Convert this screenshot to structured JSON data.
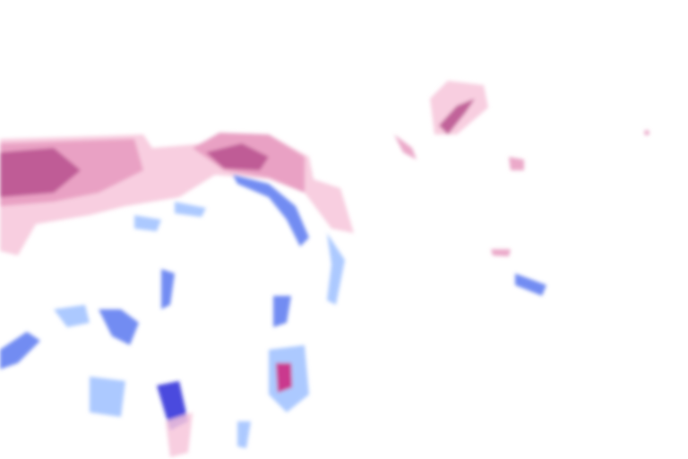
{
  "map": {
    "layer": "precipitation-overlay",
    "colors": {
      "background": "#ffffff",
      "snow_light": "#f7c6da",
      "snow_medium": "#e79ac0",
      "snow_heavy": "#b8508e",
      "rain_light": "#9ec0ff",
      "rain_medium": "#5a78f0",
      "rain_heavy": "#2a2ad8",
      "mixed": "#d0207a"
    }
  }
}
